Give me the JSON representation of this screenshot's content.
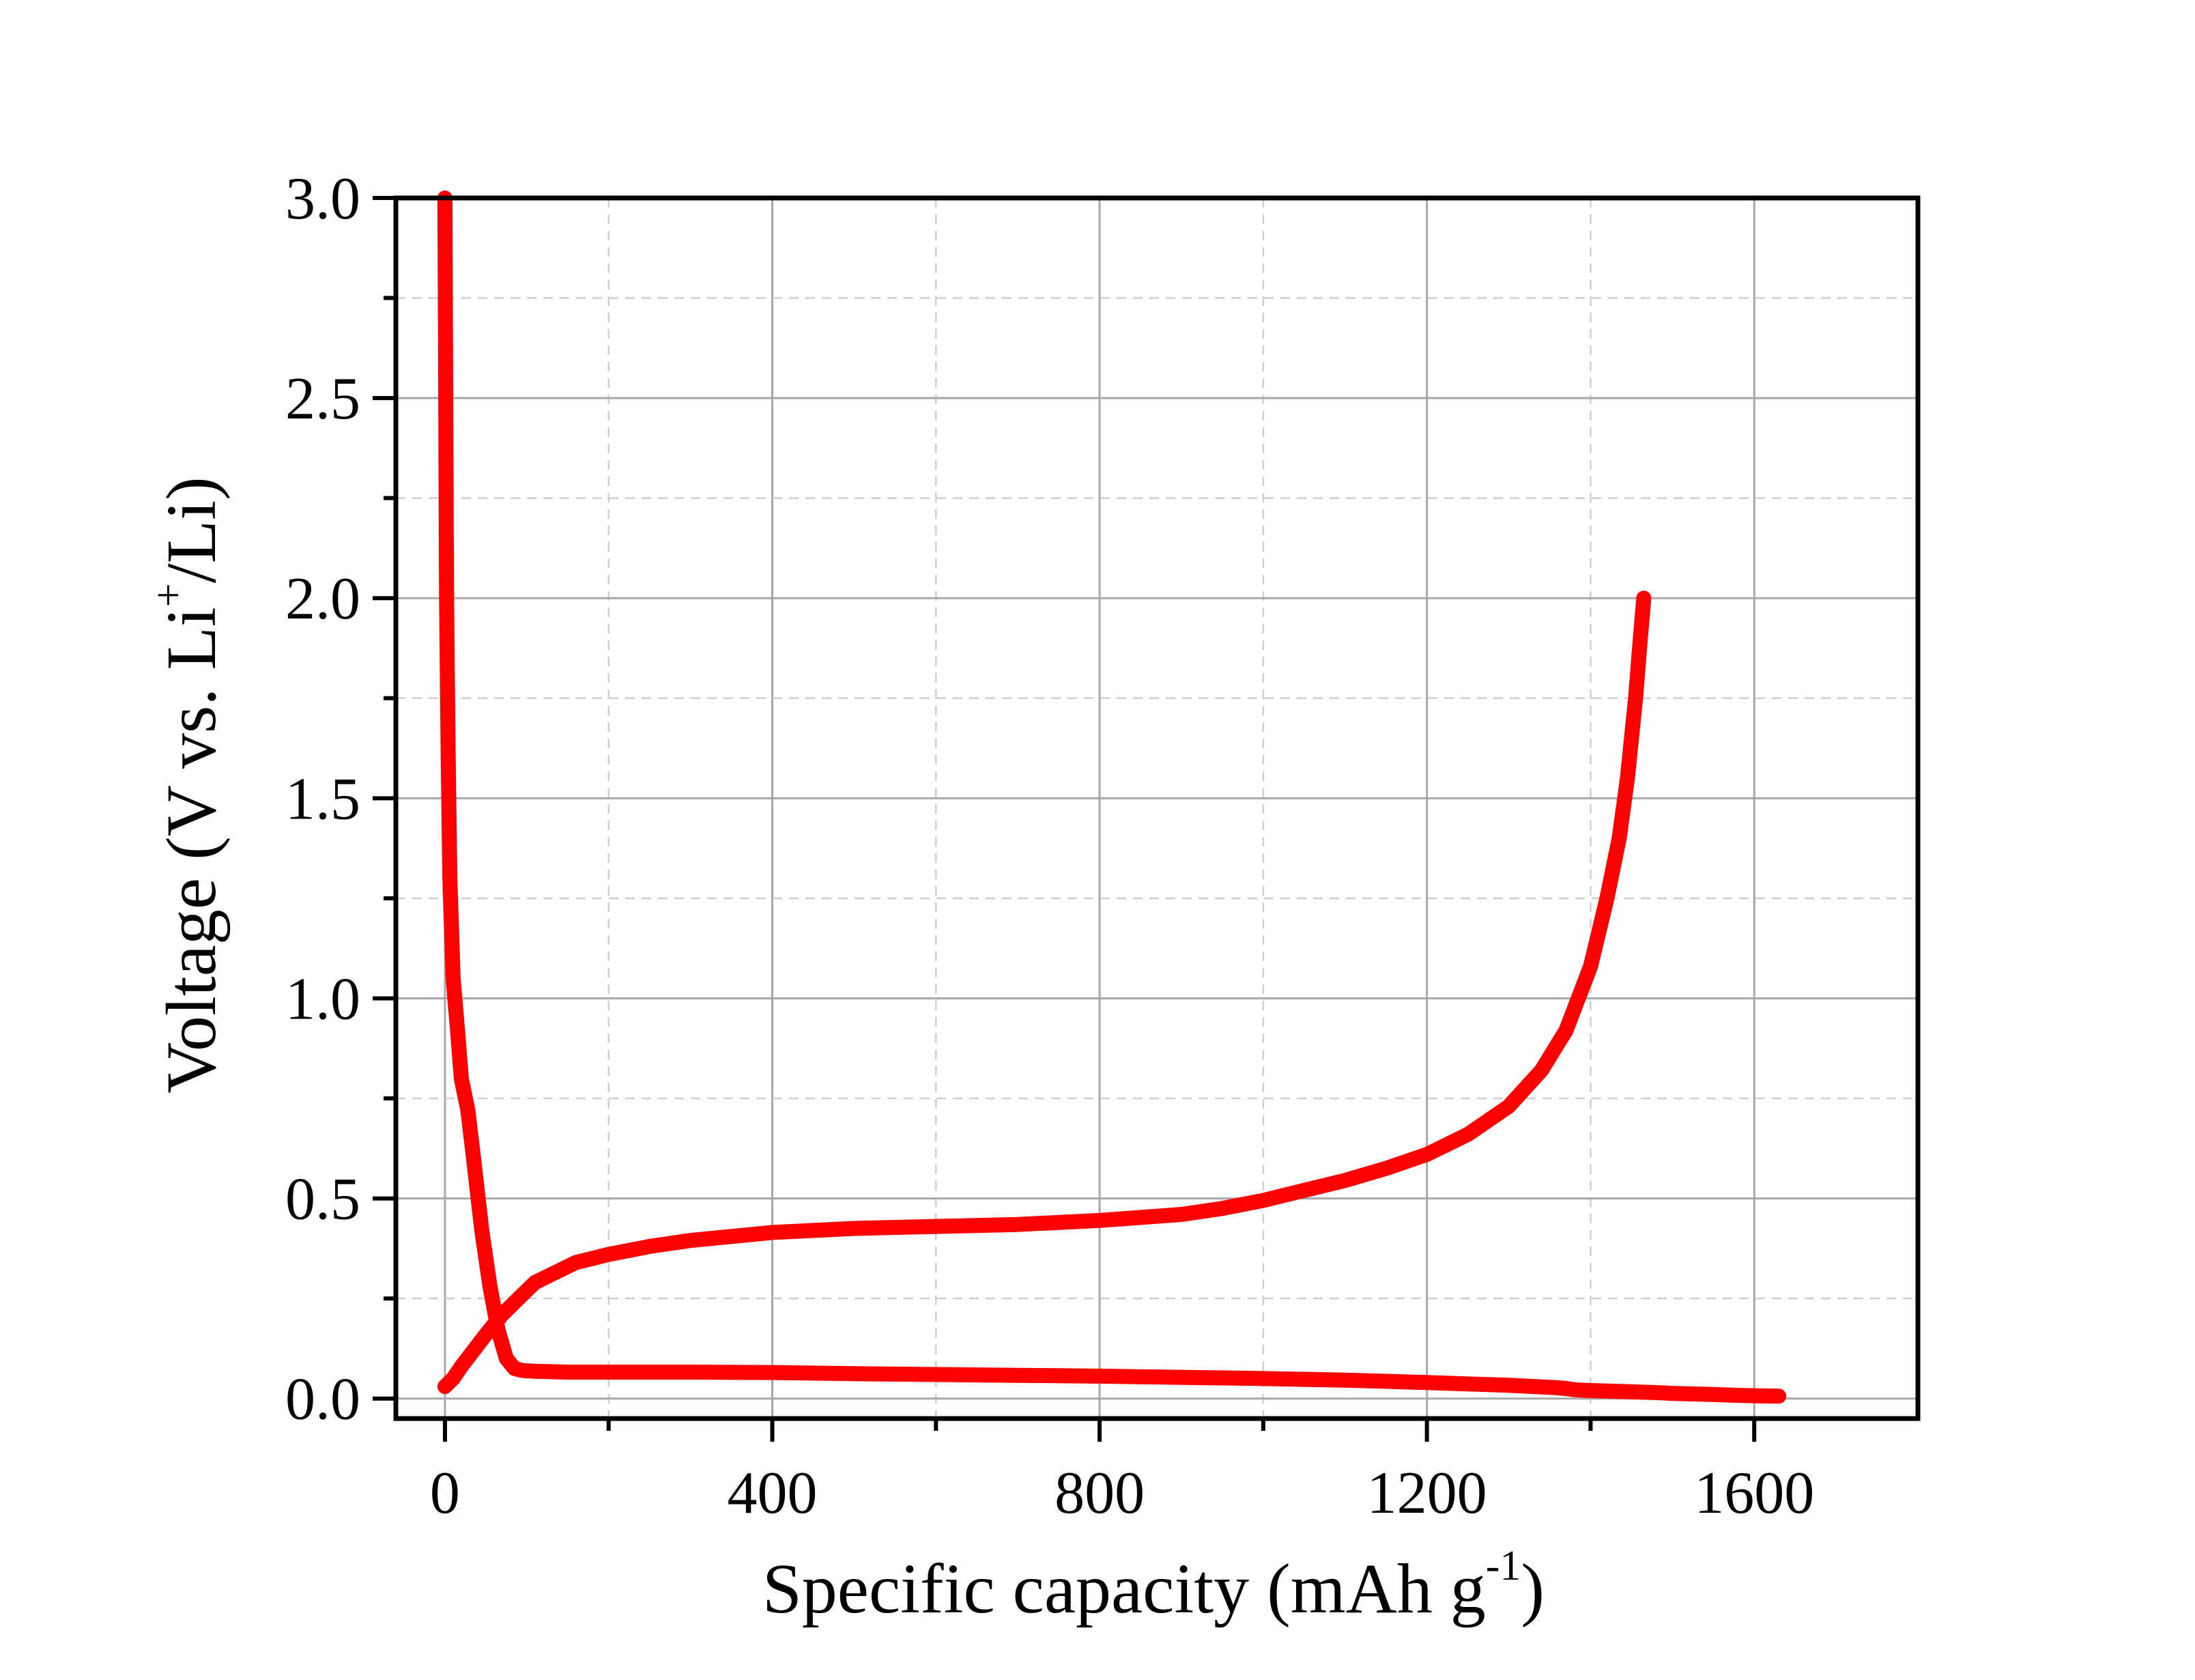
{
  "chart_data": {
    "type": "line",
    "title": "",
    "xlabel": {
      "main": "Specific capacity (mAh g",
      "sup": "-1",
      "end": ")"
    },
    "ylabel": {
      "main": "Voltage (V vs. Li",
      "sup": "+",
      "end": "/Li)"
    },
    "xlim": [
      -60,
      1800
    ],
    "ylim": [
      -0.05,
      3.0
    ],
    "x_ticks": [
      0,
      400,
      800,
      1200,
      1600
    ],
    "x_tick_labels": [
      "0",
      "400",
      "800",
      "1200",
      "1600"
    ],
    "x_minor_ticks": [
      200,
      600,
      1000,
      1400
    ],
    "y_ticks": [
      0.0,
      0.5,
      1.0,
      1.5,
      2.0,
      2.5,
      3.0
    ],
    "y_tick_labels": [
      "0.0",
      "0.5",
      "1.0",
      "1.5",
      "2.0",
      "2.5",
      "3.0"
    ],
    "y_minor_ticks": [
      0.25,
      0.75,
      1.25,
      1.75,
      2.25,
      2.75
    ],
    "grid": true,
    "legend": "none",
    "series": [
      {
        "color": "#ff0000",
        "x": [
          0,
          2,
          4,
          6,
          10,
          15,
          20,
          28,
          35,
          45,
          55,
          65,
          75,
          85,
          95,
          110,
          150,
          200,
          300,
          400,
          500,
          600,
          700,
          800,
          900,
          1000,
          1100,
          1200,
          1300,
          1360,
          1370,
          1380,
          1400,
          1450,
          1490,
          1500,
          1550,
          1580,
          1600,
          1630
        ],
        "y": [
          3.0,
          2.0,
          1.6,
          1.3,
          1.05,
          0.93,
          0.8,
          0.72,
          0.6,
          0.42,
          0.28,
          0.17,
          0.1,
          0.075,
          0.07,
          0.068,
          0.066,
          0.066,
          0.066,
          0.065,
          0.062,
          0.06,
          0.058,
          0.056,
          0.053,
          0.05,
          0.046,
          0.04,
          0.033,
          0.027,
          0.025,
          0.022,
          0.02,
          0.017,
          0.014,
          0.013,
          0.01,
          0.008,
          0.007,
          0.006
        ]
      },
      {
        "color": "#ff0000",
        "x": [
          0,
          10,
          20,
          35,
          50,
          70,
          90,
          110,
          130,
          160,
          200,
          250,
          300,
          400,
          500,
          600,
          700,
          800,
          900,
          950,
          1000,
          1050,
          1100,
          1150,
          1200,
          1250,
          1300,
          1340,
          1370,
          1400,
          1420,
          1435,
          1445,
          1455,
          1460,
          1465
        ],
        "y": [
          0.03,
          0.05,
          0.08,
          0.12,
          0.16,
          0.21,
          0.25,
          0.29,
          0.31,
          0.34,
          0.36,
          0.38,
          0.395,
          0.415,
          0.425,
          0.43,
          0.435,
          0.445,
          0.46,
          0.475,
          0.495,
          0.52,
          0.545,
          0.575,
          0.61,
          0.66,
          0.73,
          0.82,
          0.92,
          1.08,
          1.25,
          1.4,
          1.55,
          1.75,
          1.88,
          2.0
        ]
      }
    ]
  }
}
